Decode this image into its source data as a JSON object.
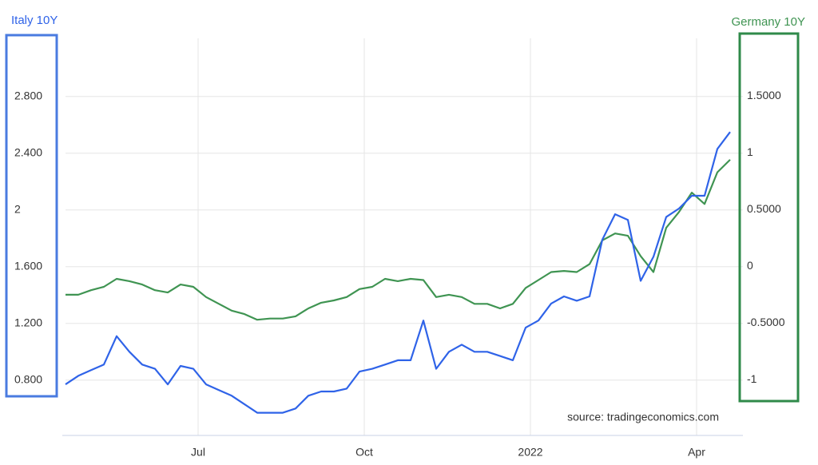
{
  "chart_data": {
    "type": "line",
    "categories": [
      null,
      null,
      null,
      null,
      null,
      null,
      null,
      null,
      null,
      null,
      "Jul",
      null,
      null,
      null,
      null,
      null,
      null,
      null,
      null,
      null,
      null,
      null,
      null,
      "Oct",
      null,
      null,
      null,
      null,
      null,
      null,
      null,
      null,
      null,
      null,
      null,
      null,
      "2022",
      null,
      null,
      null,
      null,
      null,
      null,
      null,
      null,
      null,
      null,
      null,
      null,
      "Apr",
      null,
      null,
      null
    ],
    "series": [
      {
        "name": "Italy 10Y",
        "color": "#2f63e8",
        "axis": "y",
        "values": [
          0.77,
          0.83,
          0.87,
          0.91,
          1.11,
          1.0,
          0.91,
          0.88,
          0.77,
          0.9,
          0.88,
          0.77,
          0.73,
          0.69,
          0.63,
          0.57,
          0.57,
          0.57,
          0.6,
          0.69,
          0.72,
          0.72,
          0.74,
          0.86,
          0.88,
          0.91,
          0.94,
          0.94,
          1.22,
          0.88,
          1.0,
          1.05,
          1.0,
          1.0,
          0.97,
          0.94,
          1.17,
          1.22,
          1.34,
          1.39,
          1.36,
          1.39,
          1.79,
          1.97,
          1.93,
          1.5,
          1.67,
          1.95,
          2.01,
          2.1,
          2.1,
          2.43,
          2.55
        ]
      },
      {
        "name": "Germany 10Y",
        "color": "#3f9452",
        "axis": "y2",
        "values": [
          -0.25,
          -0.25,
          -0.21,
          -0.18,
          -0.11,
          -0.13,
          -0.16,
          -0.21,
          -0.23,
          -0.16,
          -0.18,
          -0.27,
          -0.33,
          -0.39,
          -0.42,
          -0.47,
          -0.46,
          -0.46,
          -0.44,
          -0.37,
          -0.32,
          -0.3,
          -0.27,
          -0.2,
          -0.18,
          -0.11,
          -0.13,
          -0.11,
          -0.12,
          -0.27,
          -0.25,
          -0.27,
          -0.33,
          -0.33,
          -0.37,
          -0.33,
          -0.19,
          -0.12,
          -0.05,
          -0.04,
          -0.05,
          0.02,
          0.23,
          0.29,
          0.27,
          0.09,
          -0.05,
          0.34,
          0.48,
          0.65,
          0.55,
          0.83,
          0.94
        ]
      }
    ],
    "ylim": [
      0.41,
      3.21
    ],
    "yticks": [
      {
        "value": 0.8,
        "label": "0.800"
      },
      {
        "value": 1.2,
        "label": "1.200"
      },
      {
        "value": 1.6,
        "label": "1.600"
      },
      2,
      {
        "value": 2.4,
        "label": "2.400"
      },
      {
        "value": 2.8,
        "label": "2.800"
      }
    ],
    "y2lim": [
      -1.49,
      2.01
    ],
    "y2ticks": [
      -1,
      {
        "value": -0.5,
        "label": "-0.5000"
      },
      0,
      {
        "value": 0.5,
        "label": "0.5000"
      },
      1,
      {
        "value": 1.5,
        "label": "1.5000"
      }
    ],
    "grid": true,
    "source": "source: tradingeconomics.com"
  }
}
